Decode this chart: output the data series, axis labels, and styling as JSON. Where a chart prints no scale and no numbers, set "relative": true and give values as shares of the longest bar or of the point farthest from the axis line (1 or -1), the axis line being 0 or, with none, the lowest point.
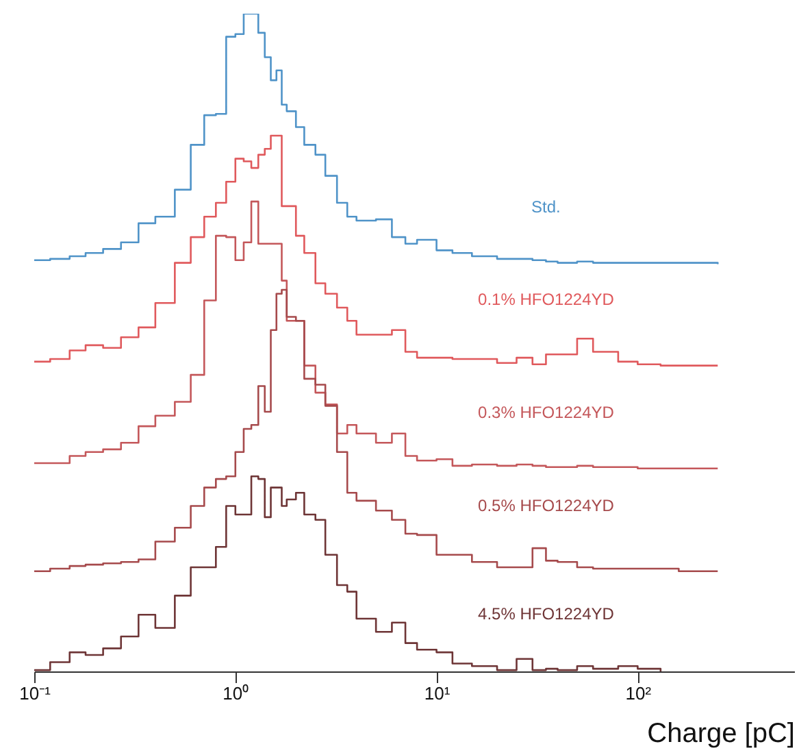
{
  "chart_data": {
    "type": "step",
    "xlabel": "Charge [pC]",
    "relative": true,
    "log": "x",
    "x": [
      0.1,
      0.12,
      0.15,
      0.18,
      0.22,
      0.27,
      0.33,
      0.4,
      0.5,
      0.6,
      0.7,
      0.8,
      0.9,
      1.0,
      1.1,
      1.2,
      1.3,
      1.4,
      1.5,
      1.6,
      1.7,
      1.8,
      2.0,
      2.2,
      2.5,
      2.8,
      3.2,
      3.6,
      4,
      5,
      6,
      7,
      8,
      10,
      12,
      15,
      20,
      25,
      30,
      35,
      40,
      50,
      60,
      80,
      100,
      130,
      160,
      200,
      250
    ],
    "xlim": [
      0.1,
      600
    ],
    "xticks": [
      {
        "value": 0.1,
        "label": "10⁻¹"
      },
      {
        "value": 1,
        "label": "10⁰"
      },
      {
        "value": 10,
        "label": "10¹"
      },
      {
        "value": 100,
        "label": "10²"
      }
    ],
    "series": [
      {
        "name": "Std.",
        "color": "#4f93c8",
        "values": [
          0.626,
          0.628,
          0.632,
          0.637,
          0.643,
          0.653,
          0.682,
          0.692,
          0.733,
          0.801,
          0.846,
          0.848,
          0.965,
          0.969,
          1,
          1,
          0.971,
          0.934,
          0.899,
          0.914,
          0.862,
          0.852,
          0.828,
          0.801,
          0.786,
          0.754,
          0.713,
          0.692,
          0.686,
          0.688,
          0.661,
          0.651,
          0.657,
          0.641,
          0.637,
          0.632,
          0.628,
          0.628,
          0.626,
          0.624,
          0.622,
          0.624,
          0.622,
          0.622,
          0.622,
          0.622,
          0.622,
          0.622,
          0.62
        ]
      },
      {
        "name": "0.1% HFO1224YD",
        "color": "#e0595c",
        "values": [
          0.472,
          0.476,
          0.489,
          0.497,
          0.493,
          0.509,
          0.524,
          0.561,
          0.622,
          0.661,
          0.692,
          0.713,
          0.745,
          0.78,
          0.776,
          0.766,
          0.786,
          0.795,
          0.815,
          0.815,
          0.708,
          0.708,
          0.663,
          0.637,
          0.591,
          0.575,
          0.554,
          0.534,
          0.513,
          0.513,
          0.52,
          0.487,
          0.478,
          0.478,
          0.476,
          0.476,
          0.47,
          0.478,
          0.468,
          0.483,
          0.483,
          0.507,
          0.487,
          0.472,
          0.468,
          0.466,
          0.466,
          0.466,
          0.466
        ]
      },
      {
        "name": "0.3% HFO1224YD",
        "color": "#c4575a",
        "values": [
          0.318,
          0.318,
          0.329,
          0.335,
          0.339,
          0.349,
          0.374,
          0.39,
          0.411,
          0.452,
          0.565,
          0.663,
          0.661,
          0.626,
          0.653,
          0.715,
          0.651,
          0.651,
          0.651,
          0.651,
          0.595,
          0.534,
          0.534,
          0.466,
          0.425,
          0.407,
          0.363,
          0.376,
          0.363,
          0.349,
          0.363,
          0.329,
          0.322,
          0.324,
          0.314,
          0.316,
          0.314,
          0.316,
          0.314,
          0.312,
          0.312,
          0.314,
          0.312,
          0.312,
          0.31,
          0.31,
          0.31,
          0.31,
          0.31
        ]
      },
      {
        "name": "0.5% HFO1224YD",
        "color": "#a64a4c",
        "values": [
          0.154,
          0.158,
          0.162,
          0.164,
          0.166,
          0.168,
          0.172,
          0.199,
          0.22,
          0.253,
          0.281,
          0.294,
          0.298,
          0.335,
          0.37,
          0.376,
          0.435,
          0.396,
          0.52,
          0.575,
          0.581,
          0.54,
          0.534,
          0.446,
          0.437,
          0.405,
          0.335,
          0.273,
          0.261,
          0.246,
          0.232,
          0.211,
          0.209,
          0.179,
          0.179,
          0.168,
          0.16,
          0.16,
          0.189,
          0.17,
          0.168,
          0.16,
          0.158,
          0.158,
          0.158,
          0.158,
          0.154,
          0.154,
          0.154
        ]
      },
      {
        "name": "4.5% HFO1224YD",
        "color": "#6e3536",
        "values": [
          0.004,
          0.016,
          0.031,
          0.027,
          0.037,
          0.055,
          0.088,
          0.068,
          0.117,
          0.16,
          0.16,
          0.191,
          0.253,
          0.24,
          0.24,
          0.298,
          0.294,
          0.236,
          0.281,
          0.281,
          0.253,
          0.263,
          0.273,
          0.24,
          0.232,
          0.179,
          0.133,
          0.123,
          0.082,
          0.062,
          0.076,
          0.045,
          0.035,
          0.031,
          0.014,
          0.01,
          0.004,
          0.021,
          0.004,
          0.006,
          0.004,
          0.01,
          0.006,
          0.01,
          0.006,
          0.002,
          null,
          null,
          null
        ]
      }
    ]
  }
}
